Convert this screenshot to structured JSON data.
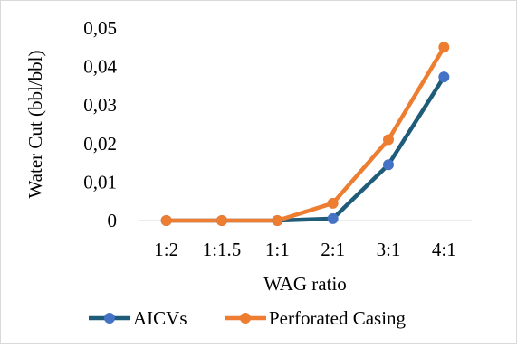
{
  "chart_data": {
    "type": "line",
    "categories": [
      "1:2",
      "1:1.5",
      "1:1",
      "2:1",
      "3:1",
      "4:1"
    ],
    "series": [
      {
        "name": "AICVs",
        "values": [
          0,
          0,
          0,
          0.0005,
          0.0145,
          0.0373
        ],
        "line_color": "#1f5c7a",
        "marker_color": "#4472c4"
      },
      {
        "name": "Perforated Casing",
        "values": [
          0,
          0,
          0,
          0.0045,
          0.021,
          0.045
        ],
        "line_color": "#ed7d31",
        "marker_color": "#ed7d31"
      }
    ],
    "yticks": [
      "0",
      "0,01",
      "0,02",
      "0,03",
      "0,04",
      "0,05"
    ],
    "ylim": [
      0,
      0.05
    ],
    "xlabel": "WAG ratio",
    "ylabel": "Water Cut (bbl/bbl)",
    "grid": false,
    "legend_position": "bottom"
  }
}
